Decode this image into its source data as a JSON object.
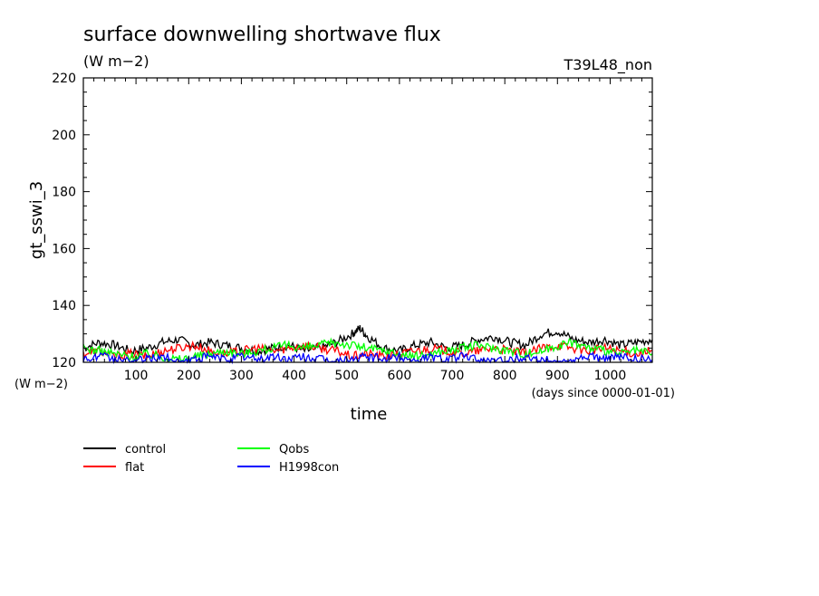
{
  "chart_data": {
    "type": "line",
    "title": "surface downwelling shortwave flux",
    "subtitle": "(W m−2)",
    "run_label": "T39L48_non",
    "xlabel": "time",
    "x_unit_label": "(days since 0000-01-01)",
    "ylabel": "gt_sswi_3",
    "y_unit_label": "(W m−2)",
    "xlim": [
      0,
      1080
    ],
    "ylim": [
      120,
      220
    ],
    "x_ticks": [
      100,
      200,
      300,
      400,
      500,
      600,
      700,
      800,
      900,
      1000
    ],
    "y_ticks": [
      120,
      140,
      160,
      180,
      200,
      220
    ],
    "legend_position": "bottom",
    "series": [
      {
        "name": "control",
        "color": "#000000",
        "x": [
          0,
          30,
          60,
          90,
          120,
          150,
          180,
          210,
          240,
          270,
          300,
          330,
          360,
          390,
          420,
          450,
          480,
          510,
          525,
          540,
          570,
          600,
          630,
          660,
          690,
          720,
          750,
          780,
          810,
          840,
          870,
          900,
          930,
          960,
          990,
          1020,
          1050,
          1080
        ],
        "values": [
          125,
          127,
          126,
          124,
          125,
          127,
          128,
          126,
          127,
          126,
          125,
          124,
          125,
          126,
          124,
          125,
          127,
          130,
          132,
          129,
          125,
          124,
          126,
          127,
          125,
          126,
          128,
          129,
          127,
          126,
          130,
          131,
          128,
          127,
          128,
          126,
          127,
          128
        ]
      },
      {
        "name": "flat",
        "color": "#ff0000",
        "x": [
          0,
          30,
          60,
          90,
          120,
          150,
          180,
          210,
          240,
          270,
          300,
          330,
          360,
          390,
          420,
          450,
          480,
          510,
          540,
          570,
          600,
          630,
          660,
          690,
          720,
          750,
          780,
          810,
          840,
          870,
          900,
          930,
          960,
          990,
          1020,
          1050,
          1080
        ],
        "values": [
          123,
          124,
          122,
          123,
          122,
          124,
          125,
          126,
          124,
          123,
          124,
          125,
          124,
          125,
          126,
          125,
          124,
          122,
          123,
          122,
          123,
          124,
          125,
          124,
          123,
          124,
          125,
          124,
          123,
          125,
          126,
          125,
          124,
          125,
          124,
          123,
          124
        ]
      },
      {
        "name": "Qobs",
        "color": "#00ff00",
        "x": [
          0,
          30,
          60,
          90,
          120,
          150,
          180,
          210,
          240,
          270,
          300,
          330,
          360,
          390,
          420,
          450,
          480,
          510,
          540,
          570,
          600,
          630,
          660,
          690,
          720,
          750,
          780,
          810,
          840,
          870,
          900,
          930,
          960,
          990,
          1020,
          1050,
          1080
        ],
        "values": [
          125,
          124,
          123,
          122,
          123,
          122,
          121,
          122,
          123,
          124,
          123,
          124,
          125,
          126,
          125,
          126,
          127,
          126,
          125,
          124,
          123,
          122,
          123,
          124,
          125,
          126,
          125,
          124,
          123,
          124,
          126,
          127,
          125,
          124,
          123,
          124,
          123
        ]
      },
      {
        "name": "H1998con",
        "color": "#0000ff",
        "x": [
          0,
          30,
          60,
          90,
          120,
          150,
          180,
          210,
          240,
          270,
          300,
          330,
          360,
          390,
          420,
          450,
          480,
          510,
          540,
          570,
          600,
          630,
          660,
          690,
          720,
          750,
          780,
          810,
          840,
          870,
          900,
          930,
          960,
          990,
          1020,
          1050,
          1080
        ],
        "values": [
          121,
          122,
          121,
          120,
          121,
          122,
          120,
          121,
          122,
          121,
          122,
          121,
          122,
          121,
          122,
          121,
          120,
          121,
          122,
          121,
          122,
          121,
          122,
          121,
          122,
          121,
          120,
          121,
          122,
          121,
          120,
          121,
          122,
          121,
          122,
          121,
          121
        ]
      }
    ]
  }
}
